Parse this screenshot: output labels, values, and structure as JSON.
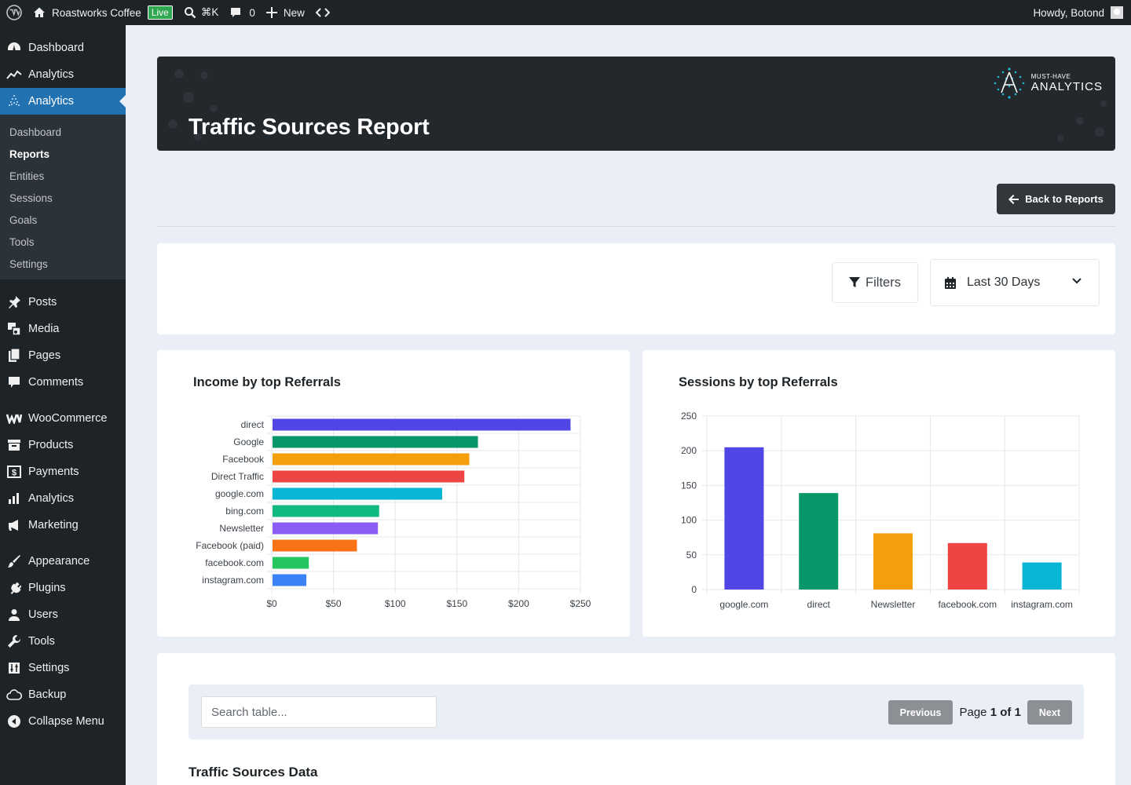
{
  "adminbar": {
    "site_name": "Roastworks Coffee",
    "live_badge": "Live",
    "shortcut": "⌘K",
    "comments_count": "0",
    "new_label": "New",
    "howdy": "Howdy, Botond"
  },
  "sidebar": {
    "top": [
      {
        "label": "Dashboard",
        "icon": "dashboard-icon"
      },
      {
        "label": "Analytics",
        "icon": "analytics-line-icon"
      },
      {
        "label": "Analytics",
        "icon": "must-have-analytics-icon",
        "active": true
      }
    ],
    "submenu": [
      "Dashboard",
      "Reports",
      "Entities",
      "Sessions",
      "Goals",
      "Tools",
      "Settings"
    ],
    "submenu_current": "Reports",
    "groups": [
      [
        "Posts",
        "Media",
        "Pages",
        "Comments"
      ],
      [
        "WooCommerce",
        "Products",
        "Payments",
        "Analytics",
        "Marketing"
      ],
      [
        "Appearance",
        "Plugins",
        "Users",
        "Tools",
        "Settings",
        "Backup",
        "Collapse Menu"
      ]
    ]
  },
  "hero": {
    "title": "Traffic Sources Report",
    "logo_top": "MUST-HAVE",
    "logo_bottom": "ANALYTICS"
  },
  "back_button": "Back to Reports",
  "filters": {
    "filters_label": "Filters",
    "date_range": "Last 30 Days"
  },
  "colors": {
    "palette": [
      "#4f46e5",
      "#059669",
      "#f59e0b",
      "#ef4444",
      "#06b6d4",
      "#10b981",
      "#8b5cf6",
      "#f97316",
      "#22c55e",
      "#3b82f6"
    ]
  },
  "chart_data": [
    {
      "type": "bar",
      "orientation": "horizontal",
      "title": "Income by top Referrals",
      "categories": [
        "direct",
        "Google",
        "Facebook",
        "Direct Traffic",
        "google.com",
        "bing.com",
        "Newsletter",
        "Facebook (paid)",
        "facebook.com",
        "instagram.com"
      ],
      "values": [
        242,
        167,
        160,
        156,
        138,
        87,
        86,
        69,
        30,
        28
      ],
      "xlim": [
        0,
        250
      ],
      "ticks": [
        "$0",
        "$50",
        "$100",
        "$150",
        "$200",
        "$250"
      ],
      "tick_values": [
        0,
        50,
        100,
        150,
        200,
        250
      ],
      "grid": true
    },
    {
      "type": "bar",
      "orientation": "vertical",
      "title": "Sessions by top Referrals",
      "categories": [
        "google.com",
        "direct",
        "Newsletter",
        "facebook.com",
        "instagram.com"
      ],
      "values": [
        205,
        139,
        81,
        67,
        39
      ],
      "ylim": [
        0,
        250
      ],
      "ticks": [
        "0",
        "50",
        "100",
        "150",
        "200",
        "250"
      ],
      "tick_values": [
        0,
        50,
        100,
        150,
        200,
        250
      ],
      "grid": true
    }
  ],
  "table": {
    "search_placeholder": "Search table...",
    "prev": "Previous",
    "next": "Next",
    "page_prefix": "Page",
    "page_current": "1",
    "page_of": "of",
    "page_total": "1",
    "heading": "Traffic Sources Data"
  }
}
